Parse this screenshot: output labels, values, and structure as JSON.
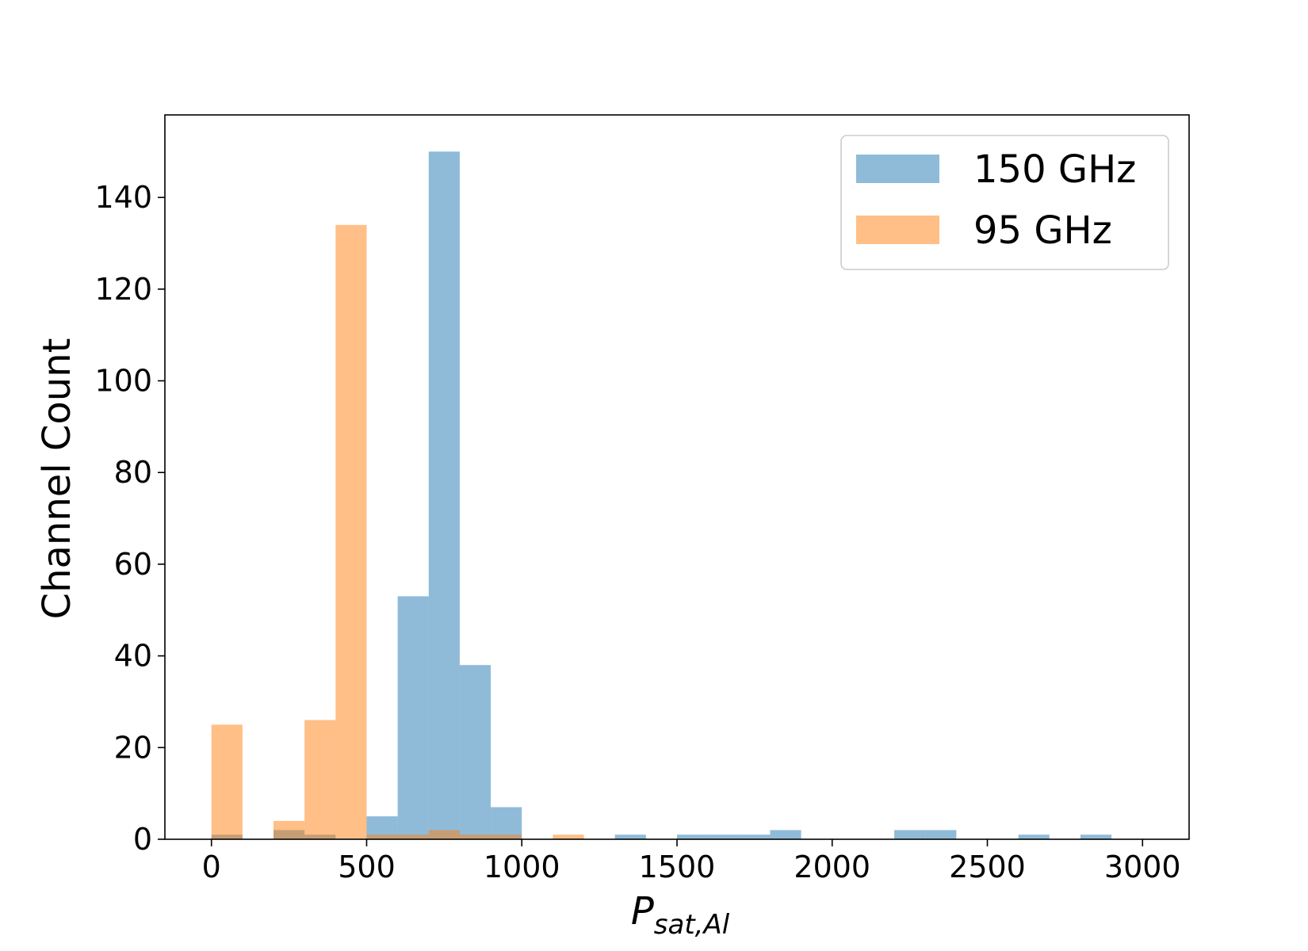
{
  "chart_data": {
    "type": "bar",
    "subtype": "histogram",
    "title": "",
    "xlabel": {
      "base": "P",
      "subscript": "sat,Al"
    },
    "ylabel": "Channel Count",
    "xlim": [
      -150,
      3150
    ],
    "ylim": [
      0,
      158
    ],
    "xticks": [
      0,
      500,
      1000,
      1500,
      2000,
      2500,
      3000
    ],
    "yticks": [
      0,
      20,
      40,
      60,
      80,
      100,
      120,
      140
    ],
    "bin_width": 100,
    "grid": false,
    "legend_position": "top-right",
    "bin_starts": [
      0,
      100,
      200,
      300,
      400,
      500,
      600,
      700,
      800,
      900,
      1000,
      1100,
      1200,
      1300,
      1400,
      1500,
      1600,
      1700,
      1800,
      1900,
      2000,
      2100,
      2200,
      2300,
      2400,
      2500,
      2600,
      2700,
      2800,
      2900
    ],
    "series": [
      {
        "name": "150 GHz",
        "color": "#1f77b4",
        "opacity": 0.5,
        "values": [
          1,
          0,
          2,
          1,
          0,
          5,
          53,
          150,
          38,
          7,
          0,
          0,
          0,
          1,
          0,
          1,
          1,
          1,
          2,
          0,
          0,
          0,
          2,
          2,
          0,
          0,
          1,
          0,
          1,
          0
        ]
      },
      {
        "name": "95 GHz",
        "color": "#ff7f0e",
        "opacity": 0.5,
        "values": [
          25,
          0,
          4,
          26,
          134,
          1,
          1,
          2,
          1,
          1,
          0,
          1,
          0,
          0,
          0,
          0,
          0,
          0,
          0,
          0,
          0,
          0,
          0,
          0,
          0,
          0,
          0,
          0,
          0,
          0
        ]
      }
    ]
  }
}
